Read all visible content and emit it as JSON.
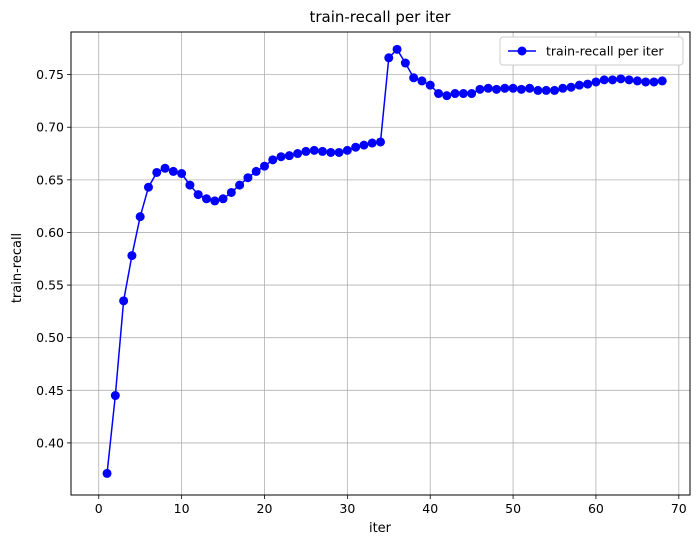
{
  "chart_data": {
    "type": "line",
    "title": "train-recall per iter",
    "xlabel": "iter",
    "ylabel": "train-recall",
    "xlim": [
      -3.35,
      71.35
    ],
    "ylim": [
      0.3505,
      0.7905
    ],
    "xticks": [
      0,
      10,
      20,
      30,
      40,
      50,
      60,
      70
    ],
    "yticks": [
      0.4,
      0.45,
      0.5,
      0.55,
      0.6,
      0.65,
      0.7,
      0.75
    ],
    "grid": true,
    "legend_position": "top-right",
    "series": [
      {
        "name": "train-recall per iter",
        "color": "#0000ff",
        "marker": "circle",
        "x": [
          1,
          2,
          3,
          4,
          5,
          6,
          7,
          8,
          9,
          10,
          11,
          12,
          13,
          14,
          15,
          16,
          17,
          18,
          19,
          20,
          21,
          22,
          23,
          24,
          25,
          26,
          27,
          28,
          29,
          30,
          31,
          32,
          33,
          34,
          35,
          36,
          37,
          38,
          39,
          40,
          41,
          42,
          43,
          44,
          45,
          46,
          47,
          48,
          49,
          50,
          51,
          52,
          53,
          54,
          55,
          56,
          57,
          58,
          59,
          60,
          61,
          62,
          63,
          64,
          65,
          66,
          67,
          68
        ],
        "y": [
          0.371,
          0.445,
          0.535,
          0.578,
          0.615,
          0.643,
          0.657,
          0.661,
          0.658,
          0.656,
          0.645,
          0.636,
          0.632,
          0.63,
          0.632,
          0.638,
          0.645,
          0.652,
          0.658,
          0.663,
          0.669,
          0.672,
          0.673,
          0.675,
          0.677,
          0.678,
          0.677,
          0.676,
          0.676,
          0.678,
          0.681,
          0.683,
          0.685,
          0.686,
          0.766,
          0.774,
          0.761,
          0.747,
          0.744,
          0.74,
          0.732,
          0.73,
          0.732,
          0.732,
          0.732,
          0.736,
          0.737,
          0.736,
          0.737,
          0.737,
          0.736,
          0.737,
          0.735,
          0.735,
          0.735,
          0.737,
          0.738,
          0.74,
          0.741,
          0.743,
          0.745,
          0.745,
          0.746,
          0.745,
          0.744,
          0.743,
          0.743,
          0.744
        ]
      }
    ]
  }
}
